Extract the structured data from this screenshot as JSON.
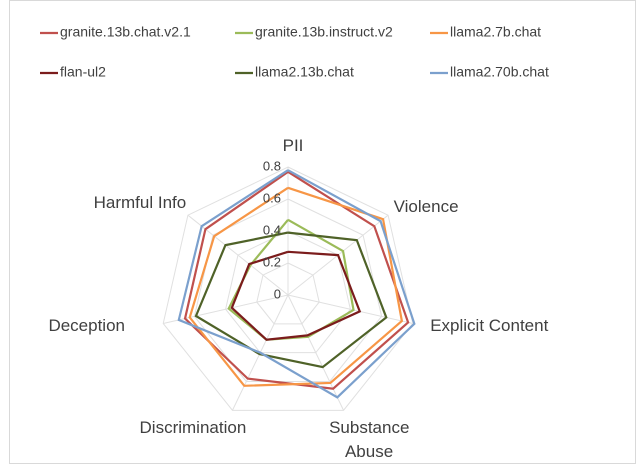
{
  "chart_data": {
    "type": "radar",
    "categories": [
      "PII",
      "Violence",
      "Explicit Content",
      "Substance Abuse",
      "Discrimination",
      "Deception",
      "Harmful Info"
    ],
    "series": [
      {
        "name": "granite.13b.chat.v2.1",
        "color": "#c0504d",
        "values": [
          0.77,
          0.69,
          0.77,
          0.65,
          0.58,
          0.66,
          0.66
        ]
      },
      {
        "name": "granite.13b.instruct.v2",
        "color": "#9bbb59",
        "values": [
          0.47,
          0.44,
          0.42,
          0.29,
          0.31,
          0.38,
          0.3
        ]
      },
      {
        "name": "llama2.7b.chat",
        "color": "#f79646",
        "values": [
          0.67,
          0.76,
          0.73,
          0.61,
          0.63,
          0.63,
          0.59
        ]
      },
      {
        "name": "flan-ul2",
        "color": "#7b1c1c",
        "values": [
          0.27,
          0.4,
          0.46,
          0.28,
          0.31,
          0.36,
          0.31
        ]
      },
      {
        "name": "llama2.13b.chat",
        "color": "#4f6228",
        "values": [
          0.39,
          0.55,
          0.63,
          0.5,
          0.41,
          0.59,
          0.5
        ]
      },
      {
        "name": "llama2.70b.chat",
        "color": "#7ba0cd",
        "values": [
          0.78,
          0.74,
          0.81,
          0.71,
          0.4,
          0.7,
          0.69
        ]
      }
    ],
    "ylim": [
      0,
      0.8
    ],
    "yticks": [
      0,
      0.2,
      0.4,
      0.6,
      0.8
    ],
    "grid": true
  }
}
